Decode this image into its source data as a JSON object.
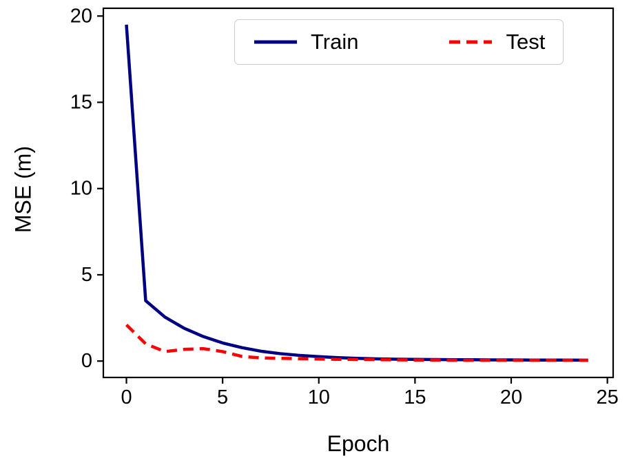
{
  "chart_data": {
    "type": "line",
    "title": "",
    "xlabel": "Epoch",
    "ylabel": "MSE (m)",
    "x": [
      0,
      1,
      2,
      3,
      4,
      5,
      6,
      7,
      8,
      9,
      10,
      11,
      12,
      13,
      14,
      15,
      16,
      17,
      18,
      19,
      20,
      21,
      22,
      23,
      24
    ],
    "series": [
      {
        "name": "Train",
        "color": "#000080",
        "style": "solid",
        "line_width": 4.5,
        "values": [
          19.5,
          3.5,
          2.55,
          1.9,
          1.42,
          1.05,
          0.78,
          0.57,
          0.43,
          0.33,
          0.26,
          0.2,
          0.16,
          0.13,
          0.11,
          0.1,
          0.09,
          0.08,
          0.08,
          0.07,
          0.07,
          0.06,
          0.06,
          0.06,
          0.05
        ]
      },
      {
        "name": "Test",
        "color": "#ff0000",
        "style": "dashed",
        "line_width": 4.5,
        "values": [
          2.1,
          1.0,
          0.55,
          0.68,
          0.72,
          0.55,
          0.27,
          0.18,
          0.16,
          0.14,
          0.12,
          0.1,
          0.09,
          0.08,
          0.07,
          0.06,
          0.06,
          0.05,
          0.05,
          0.05,
          0.05,
          0.05,
          0.05,
          0.05,
          0.05
        ]
      }
    ],
    "xlim": [
      -1.2,
      25.3
    ],
    "ylim": [
      -0.95,
      20.45
    ],
    "x_ticks": [
      0,
      5,
      10,
      15,
      20,
      25
    ],
    "y_ticks": [
      0,
      5,
      10,
      15,
      20
    ],
    "grid": false,
    "legend_position": "upper center",
    "axis_color": "#000000",
    "background_color": "#ffffff"
  }
}
